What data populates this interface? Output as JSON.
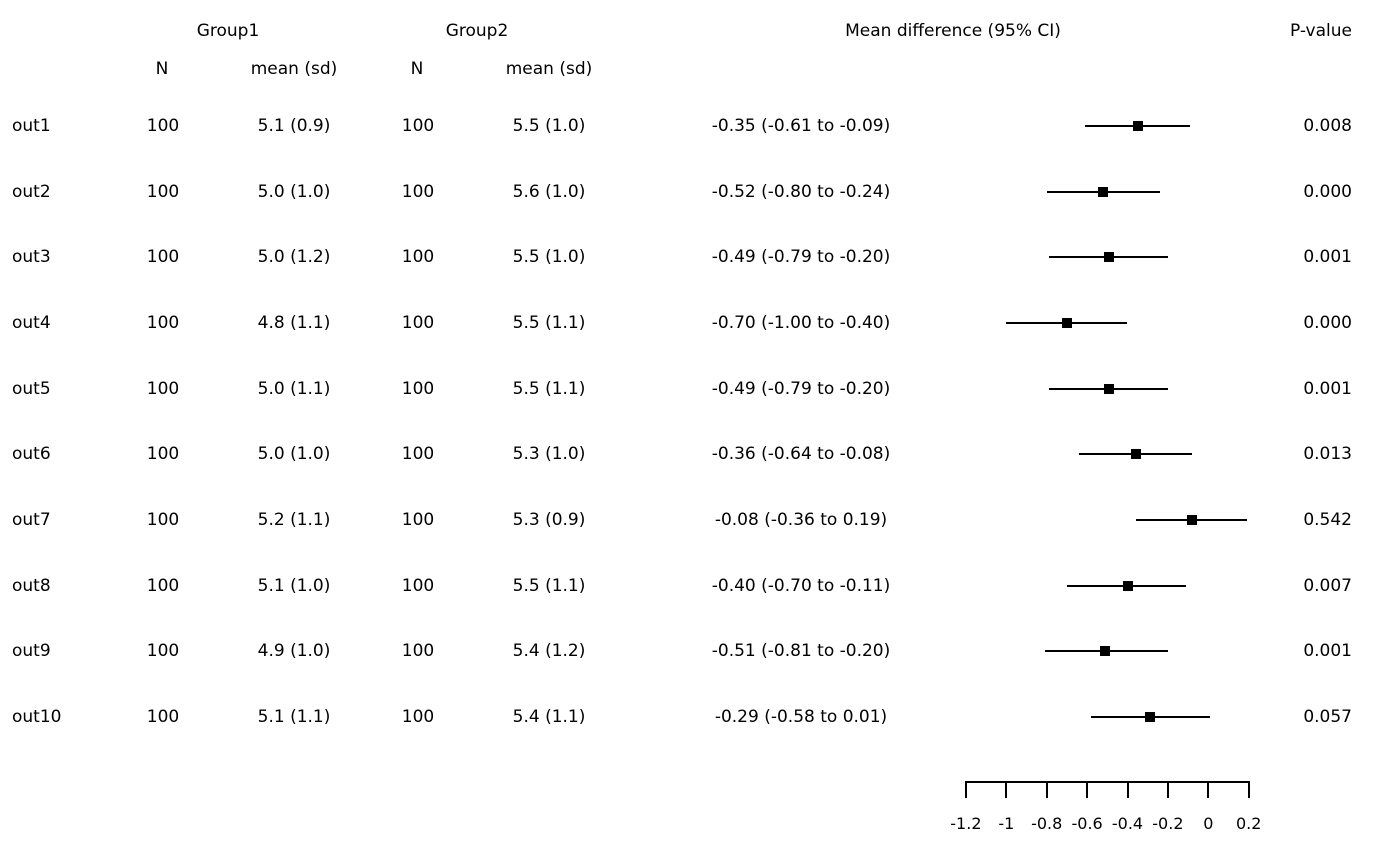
{
  "header": {
    "group1": "Group1",
    "group2": "Group2",
    "n_label": "N",
    "mean_sd_label": "mean (sd)",
    "mean_diff": "Mean difference (95% CI)",
    "p_value": "P-value"
  },
  "rows": [
    {
      "label": "out1",
      "g1_n": "100",
      "g1_mean_sd": "5.1 (0.9)",
      "g2_n": "100",
      "g2_mean_sd": "5.5 (1.0)",
      "md_ci": "-0.35 (-0.61 to -0.09)",
      "p": "0.008"
    },
    {
      "label": "out2",
      "g1_n": "100",
      "g1_mean_sd": "5.0 (1.0)",
      "g2_n": "100",
      "g2_mean_sd": "5.6 (1.0)",
      "md_ci": "-0.52 (-0.80 to -0.24)",
      "p": "0.000"
    },
    {
      "label": "out3",
      "g1_n": "100",
      "g1_mean_sd": "5.0 (1.2)",
      "g2_n": "100",
      "g2_mean_sd": "5.5 (1.0)",
      "md_ci": "-0.49 (-0.79 to -0.20)",
      "p": "0.001"
    },
    {
      "label": "out4",
      "g1_n": "100",
      "g1_mean_sd": "4.8 (1.1)",
      "g2_n": "100",
      "g2_mean_sd": "5.5 (1.1)",
      "md_ci": "-0.70 (-1.00 to -0.40)",
      "p": "0.000"
    },
    {
      "label": "out5",
      "g1_n": "100",
      "g1_mean_sd": "5.0 (1.1)",
      "g2_n": "100",
      "g2_mean_sd": "5.5 (1.1)",
      "md_ci": "-0.49 (-0.79 to -0.20)",
      "p": "0.001"
    },
    {
      "label": "out6",
      "g1_n": "100",
      "g1_mean_sd": "5.0 (1.0)",
      "g2_n": "100",
      "g2_mean_sd": "5.3 (1.0)",
      "md_ci": "-0.36 (-0.64 to -0.08)",
      "p": "0.013"
    },
    {
      "label": "out7",
      "g1_n": "100",
      "g1_mean_sd": "5.2 (1.1)",
      "g2_n": "100",
      "g2_mean_sd": "5.3 (0.9)",
      "md_ci": "-0.08 (-0.36 to 0.19)",
      "p": "0.542"
    },
    {
      "label": "out8",
      "g1_n": "100",
      "g1_mean_sd": "5.1 (1.0)",
      "g2_n": "100",
      "g2_mean_sd": "5.5 (1.1)",
      "md_ci": "-0.40 (-0.70 to -0.11)",
      "p": "0.007"
    },
    {
      "label": "out9",
      "g1_n": "100",
      "g1_mean_sd": "4.9 (1.0)",
      "g2_n": "100",
      "g2_mean_sd": "5.4 (1.2)",
      "md_ci": "-0.51 (-0.81 to -0.20)",
      "p": "0.001"
    },
    {
      "label": "out10",
      "g1_n": "100",
      "g1_mean_sd": "5.1 (1.1)",
      "g2_n": "100",
      "g2_mean_sd": "5.4 (1.1)",
      "md_ci": "-0.29 (-0.58 to 0.01)",
      "p": "0.057"
    }
  ],
  "chart_data": {
    "type": "scatter",
    "subtype": "forest-plot",
    "title": "Mean difference (95% CI)",
    "categories": [
      "out1",
      "out2",
      "out3",
      "out4",
      "out5",
      "out6",
      "out7",
      "out8",
      "out9",
      "out10"
    ],
    "estimates": [
      -0.35,
      -0.52,
      -0.49,
      -0.7,
      -0.49,
      -0.36,
      -0.08,
      -0.4,
      -0.51,
      -0.29
    ],
    "ci_low": [
      -0.61,
      -0.8,
      -0.79,
      -1.0,
      -0.79,
      -0.64,
      -0.36,
      -0.7,
      -0.81,
      -0.58
    ],
    "ci_high": [
      -0.09,
      -0.24,
      -0.2,
      -0.4,
      -0.2,
      -0.08,
      0.19,
      -0.11,
      -0.2,
      0.01
    ],
    "p_values": [
      0.008,
      0.0,
      0.001,
      0.0,
      0.001,
      0.013,
      0.542,
      0.007,
      0.001,
      0.057
    ],
    "xlim": [
      -1.2,
      0.2
    ],
    "x_ticks": [
      -1.2,
      -1,
      -0.8,
      -0.6,
      -0.4,
      -0.2,
      0,
      0.2
    ],
    "x_tick_labels": [
      "-1.2",
      "-1",
      "-0.8",
      "-0.6",
      "-0.4",
      "-0.2",
      "0",
      "0.2"
    ],
    "marker": "square",
    "grid": "off",
    "legend": "none"
  },
  "colors": {
    "background": "#ffffff",
    "text": "#000000",
    "marker": "#000000",
    "ci_line": "#000000"
  }
}
